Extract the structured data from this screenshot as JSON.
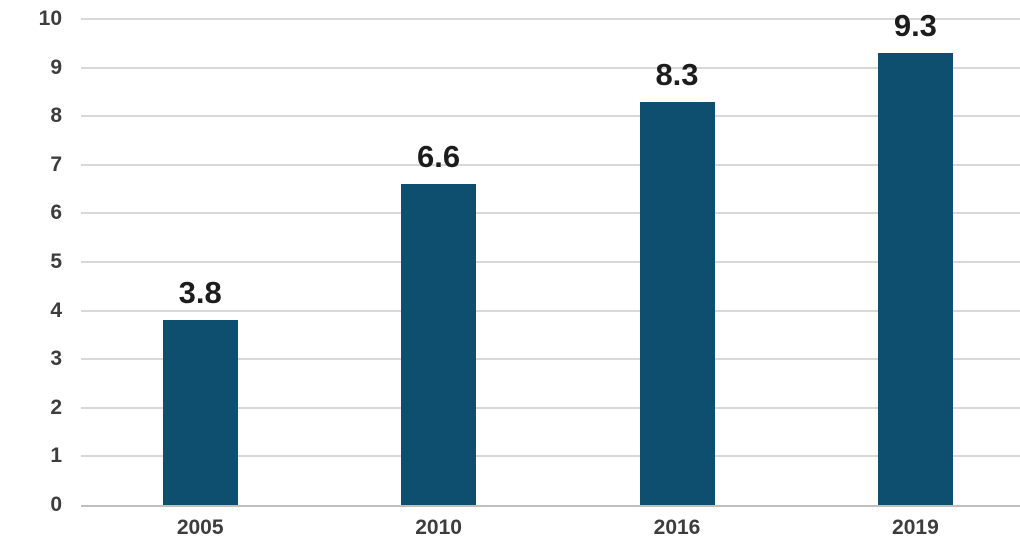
{
  "chart_data": {
    "type": "bar",
    "categories": [
      "2005",
      "2010",
      "2016",
      "2019"
    ],
    "values": [
      3.8,
      6.6,
      8.3,
      9.3
    ],
    "data_labels": [
      "3.8",
      "6.6",
      "8.3",
      "9.3"
    ],
    "title": "",
    "xlabel": "",
    "ylabel": "",
    "ylim": [
      0,
      10
    ],
    "yticks": [
      0,
      1,
      2,
      3,
      4,
      5,
      6,
      7,
      8,
      9,
      10
    ],
    "grid": true,
    "legend_position": "none",
    "colors": {
      "bar": "#0e4f70",
      "data_label": "#1c1c1c",
      "tick_label": "#3d3d3d",
      "gridline": "#d8d8d8",
      "axis_line": "#bfbfbf",
      "background": "#ffffff"
    }
  }
}
